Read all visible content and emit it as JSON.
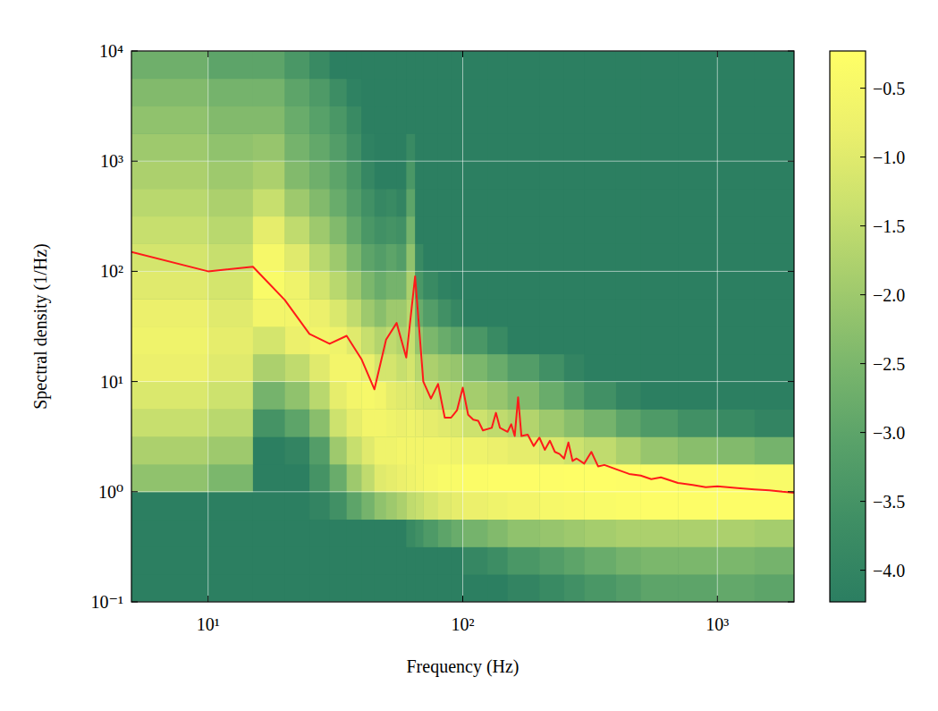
{
  "chart_data": {
    "type": "heatmap",
    "x_label": "Frequency (Hz)",
    "y_label": "Spectral density (1/Hz)",
    "log": true,
    "grid": true,
    "xlim": [
      5,
      2000
    ],
    "ylim": [
      0.1,
      10000
    ],
    "xticks": [
      {
        "value": 10,
        "label": "10¹"
      },
      {
        "value": 100,
        "label": "10²"
      },
      {
        "value": 1000,
        "label": "10³"
      }
    ],
    "yticks": [
      {
        "value": 0.1,
        "label": "10⁻¹"
      },
      {
        "value": 1,
        "label": "10⁰"
      },
      {
        "value": 10,
        "label": "10¹"
      },
      {
        "value": 100,
        "label": "10²"
      },
      {
        "value": 1000,
        "label": "10³"
      },
      {
        "value": 10000,
        "label": "10⁴"
      }
    ],
    "xbins": [
      5,
      10,
      15,
      20,
      25,
      30,
      35,
      40,
      45,
      50,
      55,
      60,
      65,
      70,
      80,
      90,
      100,
      125,
      150,
      200,
      250,
      300,
      400,
      500,
      700,
      1000,
      1400,
      2000
    ],
    "ybins": [
      0.1,
      0.178,
      0.316,
      0.562,
      1,
      1.78,
      3.16,
      5.62,
      10,
      17.8,
      31.6,
      56.2,
      100,
      178,
      316,
      562,
      1000,
      1780,
      3160,
      5620,
      10000
    ],
    "cells": [
      [
        -4.2,
        -4.2,
        -4.2,
        -4.2,
        -4.2,
        -4.2,
        -4.2,
        -4.2,
        -4.2,
        -4.2,
        -4.2,
        -4.2,
        -4.2,
        -4.2,
        -4.2,
        -4.2,
        -4.2,
        -4.2,
        -4.0,
        -3.8,
        -3.6,
        -3.4,
        -3.2,
        -3.0,
        -3.0,
        -2.9,
        -3.0
      ],
      [
        -4.2,
        -4.2,
        -4.2,
        -4.2,
        -4.2,
        -4.2,
        -4.2,
        -4.2,
        -4.2,
        -4.2,
        -4.2,
        -4.2,
        -4.2,
        -4.2,
        -4.2,
        -4.2,
        -3.9,
        -3.7,
        -3.4,
        -3.2,
        -3.0,
        -2.8,
        -2.6,
        -2.5,
        -2.5,
        -2.5,
        -2.6
      ],
      [
        -4.2,
        -4.2,
        -4.2,
        -4.2,
        -4.2,
        -4.2,
        -4.2,
        -4.2,
        -4.2,
        -4.2,
        -4.2,
        -3.8,
        -3.6,
        -3.3,
        -3.0,
        -2.8,
        -2.6,
        -2.4,
        -2.2,
        -2.1,
        -2.0,
        -1.9,
        -1.8,
        -1.8,
        -1.8,
        -1.8,
        -1.9
      ],
      [
        -4.2,
        -4.2,
        -4.2,
        -4.2,
        -4.0,
        -3.6,
        -3.0,
        -2.6,
        -2.2,
        -2.0,
        -1.8,
        -1.5,
        -1.4,
        -1.2,
        -1.0,
        -0.9,
        -0.8,
        -0.7,
        -0.6,
        -0.5,
        -0.45,
        -0.4,
        -0.35,
        -0.3,
        -0.3,
        -0.3,
        -0.3
      ],
      [
        -2.2,
        -2.5,
        -4.2,
        -4.2,
        -3.5,
        -2.8,
        -2.0,
        -1.5,
        -1.0,
        -0.9,
        -0.8,
        -0.7,
        -0.6,
        -0.5,
        -0.4,
        -0.4,
        -0.35,
        -0.3,
        -0.3,
        -0.3,
        -0.25,
        -0.25,
        -0.3,
        -0.3,
        -0.35,
        -0.35,
        -0.4
      ],
      [
        -1.8,
        -2.0,
        -4.2,
        -4.0,
        -3.2,
        -2.0,
        -1.4,
        -1.0,
        -0.7,
        -0.7,
        -0.6,
        -0.6,
        -0.6,
        -0.6,
        -0.6,
        -0.7,
        -0.7,
        -0.8,
        -0.9,
        -1.1,
        -1.3,
        -1.5,
        -1.8,
        -2.1,
        -2.3,
        -2.4,
        -2.6
      ],
      [
        -1.4,
        -1.6,
        -3.5,
        -3.0,
        -2.3,
        -1.3,
        -0.9,
        -0.6,
        -0.6,
        -0.7,
        -0.8,
        -0.7,
        -0.8,
        -0.9,
        -1.0,
        -1.1,
        -1.3,
        -1.5,
        -1.7,
        -2.0,
        -2.3,
        -2.6,
        -3.0,
        -3.3,
        -3.6,
        -3.8,
        -4.0
      ],
      [
        -1.1,
        -1.3,
        -2.6,
        -2.2,
        -1.6,
        -0.9,
        -0.6,
        -0.5,
        -0.6,
        -0.9,
        -1.0,
        -1.0,
        -1.2,
        -1.3,
        -1.5,
        -1.6,
        -1.9,
        -2.1,
        -2.4,
        -2.8,
        -3.2,
        -3.6,
        -4.0,
        -4.2,
        -4.2,
        -4.2,
        -4.2
      ],
      [
        -0.8,
        -1.0,
        -1.8,
        -1.5,
        -1.0,
        -0.6,
        -0.6,
        -0.8,
        -1.2,
        -1.2,
        -1.4,
        -1.2,
        -1.6,
        -1.8,
        -2.0,
        -2.1,
        -2.5,
        -2.8,
        -3.2,
        -3.6,
        -4.0,
        -4.2,
        -4.2,
        -4.2,
        -4.2,
        -4.2,
        -4.2
      ],
      [
        -0.7,
        -0.9,
        -1.2,
        -0.8,
        -0.6,
        -0.7,
        -1.0,
        -1.4,
        -1.7,
        -1.5,
        -1.7,
        -1.4,
        -2.1,
        -2.5,
        -2.8,
        -3.0,
        -3.4,
        -3.8,
        -4.2,
        -4.2,
        -4.2,
        -4.2,
        -4.2,
        -4.2,
        -4.2,
        -4.2,
        -4.2
      ],
      [
        -0.8,
        -1.0,
        -0.6,
        -0.6,
        -0.8,
        -1.1,
        -1.5,
        -2.0,
        -2.3,
        -2.0,
        -2.0,
        -1.6,
        -2.8,
        -3.2,
        -3.6,
        -3.9,
        -4.2,
        -4.2,
        -4.2,
        -4.2,
        -4.2,
        -4.2,
        -4.2,
        -4.2,
        -4.2,
        -4.2,
        -4.2
      ],
      [
        -1.0,
        -1.2,
        -0.4,
        -0.7,
        -1.2,
        -1.6,
        -2.0,
        -2.5,
        -2.8,
        -2.6,
        -2.6,
        -1.8,
        -3.4,
        -3.8,
        -4.1,
        -4.2,
        -4.2,
        -4.2,
        -4.2,
        -4.2,
        -4.2,
        -4.2,
        -4.2,
        -4.2,
        -4.2,
        -4.2,
        -4.2
      ],
      [
        -1.2,
        -1.4,
        -0.5,
        -1.0,
        -1.6,
        -2.0,
        -2.5,
        -3.0,
        -3.2,
        -3.0,
        -3.2,
        -2.2,
        -3.8,
        -4.2,
        -4.2,
        -4.2,
        -4.2,
        -4.2,
        -4.2,
        -4.2,
        -4.2,
        -4.2,
        -4.2,
        -4.2,
        -4.2,
        -4.2,
        -4.2
      ],
      [
        -1.4,
        -1.6,
        -0.9,
        -1.5,
        -2.0,
        -2.4,
        -2.9,
        -3.4,
        -3.6,
        -3.5,
        -3.6,
        -2.6,
        -4.2,
        -4.2,
        -4.2,
        -4.2,
        -4.2,
        -4.2,
        -4.2,
        -4.2,
        -4.2,
        -4.2,
        -4.2,
        -4.2,
        -4.2,
        -4.2,
        -4.2
      ],
      [
        -1.6,
        -1.8,
        -1.4,
        -2.0,
        -2.4,
        -2.8,
        -3.2,
        -3.6,
        -3.9,
        -3.8,
        -4.0,
        -3.0,
        -4.2,
        -4.2,
        -4.2,
        -4.2,
        -4.2,
        -4.2,
        -4.2,
        -4.2,
        -4.2,
        -4.2,
        -4.2,
        -4.2,
        -4.2,
        -4.2,
        -4.2
      ],
      [
        -1.8,
        -2.0,
        -1.8,
        -2.4,
        -2.7,
        -3.0,
        -3.4,
        -3.9,
        -4.2,
        -4.2,
        -4.2,
        -3.4,
        -4.2,
        -4.2,
        -4.2,
        -4.2,
        -4.2,
        -4.2,
        -4.2,
        -4.2,
        -4.2,
        -4.2,
        -4.2,
        -4.2,
        -4.2,
        -4.2,
        -4.2
      ],
      [
        -2.0,
        -2.2,
        -2.1,
        -2.6,
        -2.9,
        -3.2,
        -3.6,
        -4.1,
        -4.2,
        -4.2,
        -4.2,
        -3.8,
        -4.2,
        -4.2,
        -4.2,
        -4.2,
        -4.2,
        -4.2,
        -4.2,
        -4.2,
        -4.2,
        -4.2,
        -4.2,
        -4.2,
        -4.2,
        -4.2,
        -4.2
      ],
      [
        -2.2,
        -2.4,
        -2.4,
        -2.8,
        -3.1,
        -3.4,
        -3.8,
        -4.2,
        -4.2,
        -4.2,
        -4.2,
        -4.2,
        -4.2,
        -4.2,
        -4.2,
        -4.2,
        -4.2,
        -4.2,
        -4.2,
        -4.2,
        -4.2,
        -4.2,
        -4.2,
        -4.2,
        -4.2,
        -4.2,
        -4.2
      ],
      [
        -2.4,
        -2.6,
        -2.6,
        -3.0,
        -3.3,
        -3.7,
        -4.1,
        -4.2,
        -4.2,
        -4.2,
        -4.2,
        -4.2,
        -4.2,
        -4.2,
        -4.2,
        -4.2,
        -4.2,
        -4.2,
        -4.2,
        -4.2,
        -4.2,
        -4.2,
        -4.2,
        -4.2,
        -4.2,
        -4.2,
        -4.2
      ],
      [
        -2.7,
        -3.0,
        -3.0,
        -3.4,
        -3.8,
        -4.2,
        -4.2,
        -4.2,
        -4.2,
        -4.2,
        -4.2,
        -4.2,
        -4.2,
        -4.2,
        -4.2,
        -4.2,
        -4.2,
        -4.2,
        -4.2,
        -4.2,
        -4.2,
        -4.2,
        -4.2,
        -4.2,
        -4.2,
        -4.2,
        -4.2
      ]
    ],
    "colorbar": {
      "range": [
        -4.23,
        -0.23
      ],
      "ticks": [
        {
          "value": -0.5,
          "label": "−0.5"
        },
        {
          "value": -1.0,
          "label": "−1.0"
        },
        {
          "value": -1.5,
          "label": "−1.5"
        },
        {
          "value": -2.0,
          "label": "−2.0"
        },
        {
          "value": -2.5,
          "label": "−2.5"
        },
        {
          "value": -3.0,
          "label": "−3.0"
        },
        {
          "value": -3.5,
          "label": "−3.5"
        },
        {
          "value": -4.0,
          "label": "−4.0"
        }
      ],
      "colors": [
        "#2b7e61",
        "#3e8e64",
        "#58a169",
        "#7ab66c",
        "#a2cb6d",
        "#c9e06e",
        "#ecf06c",
        "#ffff66"
      ]
    },
    "series": [
      {
        "type": "line",
        "color": "#ff1a1a",
        "x": [
          5,
          10,
          15,
          20,
          25,
          30,
          35,
          40,
          45,
          50,
          55,
          60,
          65,
          70,
          75,
          80,
          85,
          90,
          95,
          100,
          105,
          110,
          115,
          120,
          130,
          135,
          140,
          150,
          155,
          160,
          165,
          170,
          180,
          190,
          200,
          210,
          220,
          230,
          240,
          250,
          260,
          270,
          280,
          300,
          320,
          340,
          360,
          400,
          450,
          500,
          550,
          600,
          700,
          800,
          900,
          1000,
          1200,
          1400,
          1600,
          1800,
          2000
        ],
        "values": [
          150,
          100,
          110,
          55,
          27,
          22,
          26,
          16,
          8.5,
          24,
          34,
          16.5,
          90,
          10,
          7,
          9.5,
          4.7,
          4.7,
          5.5,
          8.8,
          5,
          4.5,
          4.4,
          3.6,
          3.8,
          5.2,
          3.8,
          3.5,
          4.1,
          3.2,
          7.2,
          3.2,
          3.3,
          2.6,
          3.1,
          2.4,
          2.9,
          2.3,
          2.2,
          2.0,
          2.8,
          1.9,
          2.0,
          1.8,
          2.3,
          1.7,
          1.75,
          1.6,
          1.45,
          1.4,
          1.3,
          1.35,
          1.2,
          1.15,
          1.1,
          1.12,
          1.08,
          1.05,
          1.03,
          1.0,
          0.98
        ]
      }
    ]
  }
}
